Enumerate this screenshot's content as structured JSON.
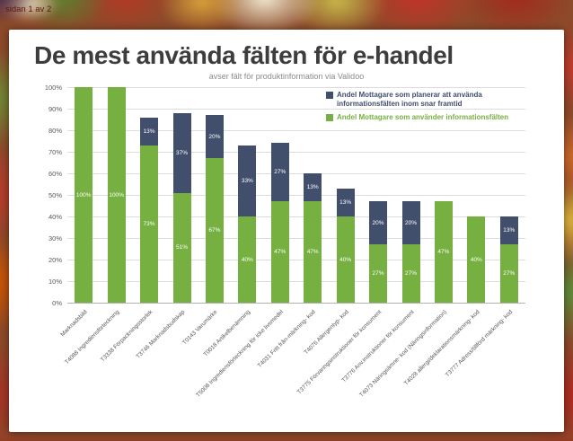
{
  "page": {
    "indicator": "sidan 1 av 2"
  },
  "slide": {
    "title": "De mest använda fälten för e-handel",
    "subtitle": "avser fält för produktinformation via Validoo"
  },
  "chart_data": {
    "type": "bar",
    "stacked": true,
    "title": "De mest använda fälten för e-handel",
    "subtitle": "avser fält för produktinformation via Validoo",
    "xlabel": "",
    "ylabel": "",
    "ylim": [
      0,
      100
    ],
    "ytick_step": 10,
    "value_suffix": "%",
    "grid": true,
    "legend_position": "top-right",
    "categories": [
      "Marknadsbild",
      "T4088 Ingrediensförteckning",
      "T3338 Förpackningsstorlek",
      "T3746 Marknadsbudskap",
      "T0143 Varumärke",
      "T0018 Artikelbenämning",
      "T5008 Ingrediensförteckning för icke livsmedel",
      "T4031 Fritt från-märkning- kod",
      "T4076 Allergentyp- kod",
      "T3775 Förvaringsinstruktioner för konsument",
      "T3776 Anv.instruktioner för konsument",
      "T4073 Näringsämne- kod (Näringsinformation)",
      "T4028 allergi/deklarationsmärkning- kod",
      "T3777 Adress/tillförd märkning- kod"
    ],
    "series": [
      {
        "name": "Andel Mottagare som använder informationsfälten",
        "color": "#76b041",
        "values": [
          100,
          100,
          73,
          51,
          67,
          40,
          47,
          47,
          40,
          27,
          27,
          47,
          40,
          27
        ]
      },
      {
        "name": "Andel Mottagare som planerar att använda informationsfälten inom snar framtid",
        "color": "#414f6d",
        "values": [
          0,
          0,
          13,
          37,
          20,
          33,
          27,
          13,
          13,
          20,
          20,
          0,
          0,
          13
        ]
      }
    ],
    "legend": [
      {
        "label": "Andel Mottagare som planerar att använda informationsfälten inom snar framtid",
        "color": "#414f6d"
      },
      {
        "label": "Andel Mottagare som använder informationsfälten",
        "color": "#76b041"
      }
    ]
  }
}
